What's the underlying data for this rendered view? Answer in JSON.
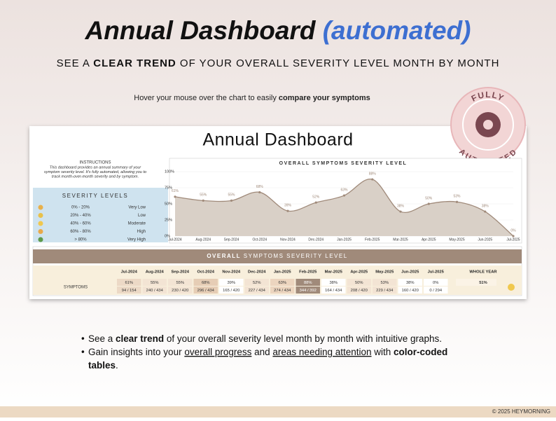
{
  "header": {
    "title": "Annual Dashboard",
    "title_accent": "(automated)",
    "subtitle": [
      "SEE A ",
      "CLEAR TREND",
      " OF YOUR OVERALL SEVERITY LEVEL MONTH BY MONTH"
    ]
  },
  "hover_note": [
    "Hover your mouse over the chart to easily ",
    "compare your symptoms"
  ],
  "badge": {
    "top": "FULLY",
    "bottom": "AUTOMATED"
  },
  "dashboard": {
    "title": "Annual Dashboard",
    "instructions": {
      "heading": "INSTRUCTIONS",
      "lines": [
        "This dashboard provides an annual summary of your",
        "symptom severity level. It's fully automated, allowing you to",
        "track month-over-month severity and by symptom."
      ]
    },
    "severity_levels": {
      "title": "SEVERITY LEVELS",
      "colors": [
        "#e8b04a",
        "#e8c14a",
        "#f0c84e",
        "#e8a94a",
        "#5d9a4a"
      ],
      "rows": [
        [
          "0% - 20%",
          "Very Low"
        ],
        [
          "20% - 40%",
          "Low"
        ],
        [
          "40% - 60%",
          "Moderate"
        ],
        [
          "60% - 80%",
          "High"
        ],
        [
          "> 80%",
          "Very High"
        ]
      ]
    },
    "table": {
      "title": [
        "OVERALL",
        " SYMPTOMS SEVERITY LEVEL"
      ],
      "columns": [
        "Jul-2024",
        "Aug-2024",
        "Sep-2024",
        "Oct-2024",
        "Nov-2024",
        "Dec-2024",
        "Jan-2025",
        "Feb-2025",
        "Mar-2025",
        "Apr-2025",
        "May-2025",
        "Jun-2025",
        "Jul-2025",
        "WHOLE YEAR"
      ],
      "row_label": "SYMPTOMS",
      "percents": [
        "61%",
        "55%",
        "55%",
        "68%",
        "39%",
        "52%",
        "63%",
        "88%",
        "38%",
        "50%",
        "53%",
        "38%",
        "0%",
        "51%"
      ],
      "fractions": [
        "94 / 154",
        "240 / 434",
        "230 / 420",
        "296 / 434",
        "165 / 420",
        "227 / 434",
        "274 / 434",
        "344 / 392",
        "164 / 434",
        "208 / 420",
        "229 / 434",
        "160 / 420",
        "0 / 294"
      ],
      "cell_colors": [
        "#ecd9c6",
        "#f3e4d4",
        "#f3e4d4",
        "#e6cdb5",
        "#ffffff",
        "#f3e4d4",
        "#ecd5bf",
        "#a08a7a",
        "#ffffff",
        "#f3e4d4",
        "#f3e4d4",
        "#ffffff",
        "#ffffff",
        "#fbf3e6"
      ]
    }
  },
  "chart_data": {
    "type": "area",
    "title": "OVERALL SYMPTOMS SEVERITY LEVEL",
    "categories": [
      "Jul-2024",
      "Aug-2024",
      "Sep-2024",
      "Oct-2024",
      "Nov-2024",
      "Dec-2024",
      "Jan-2025",
      "Feb-2025",
      "Mar-2025",
      "Apr-2025",
      "May-2025",
      "Jun-2025",
      "Jul-2025"
    ],
    "values": [
      61,
      55,
      55,
      68,
      39,
      52,
      63,
      88,
      38,
      50,
      53,
      38,
      0
    ],
    "value_labels": [
      "61%",
      "55%",
      "55%",
      "68%",
      "39%",
      "52%",
      "63%",
      "88%",
      "38%",
      "50%",
      "53%",
      "38%",
      "0%"
    ],
    "color": "#a08a7a",
    "fill": "#d9d0c7",
    "ylim": [
      0,
      100
    ],
    "yticks": [
      {
        "value": 0,
        "label": "0%"
      },
      {
        "value": 25,
        "label": "25%"
      },
      {
        "value": 50,
        "label": "50%"
      },
      {
        "value": 75,
        "label": "75%"
      },
      {
        "value": 100,
        "label": "100%"
      }
    ],
    "grid": true
  },
  "bullets": [
    [
      "See a ",
      "clear trend",
      " of your overall severity level month by month with intuitive graphs."
    ],
    [
      "Gain insights into your ",
      "overall progress",
      " and ",
      "areas needing attention",
      " with ",
      "color-coded",
      "tables",
      "."
    ]
  ],
  "footer": "© 2025 HEYMORNING"
}
